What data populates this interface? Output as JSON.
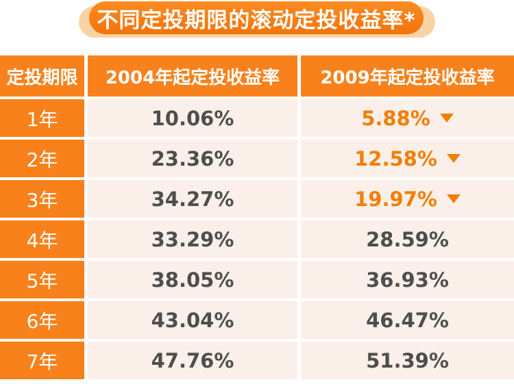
{
  "title": {
    "text": "不同定投期限的滚动定投收益率*"
  },
  "colors": {
    "table_orange": "#F8811B",
    "pill_orange": "#F2740C",
    "pill_halo": "#FAD3A5",
    "cell_bg": "#FBF0E9",
    "value_dark": "#4E4E4E",
    "value_orange": "#F57D00"
  },
  "table": {
    "headers": [
      "定投期限",
      "2004年起定投收益率",
      "2009年起定投收益率"
    ],
    "rows": [
      {
        "period": "1年",
        "v2004": "10.06%",
        "v2009": "5.88%",
        "down": true
      },
      {
        "period": "2年",
        "v2004": "23.36%",
        "v2009": "12.58%",
        "down": true
      },
      {
        "period": "3年",
        "v2004": "34.27%",
        "v2009": "19.97%",
        "down": true
      },
      {
        "period": "4年",
        "v2004": "33.29%",
        "v2009": "28.59%",
        "down": false
      },
      {
        "period": "5年",
        "v2004": "38.05%",
        "v2009": "36.93%",
        "down": false
      },
      {
        "period": "6年",
        "v2004": "43.04%",
        "v2009": "46.47%",
        "down": false
      },
      {
        "period": "7年",
        "v2004": "47.76%",
        "v2009": "51.39%",
        "down": false
      }
    ]
  },
  "chart_data": {
    "type": "table",
    "title": "不同定投期限的滚动定投收益率*",
    "columns": [
      "定投期限",
      "2004年起定投收益率",
      "2009年起定投收益率"
    ],
    "rows": [
      [
        "1年",
        "10.06%",
        "5.88%"
      ],
      [
        "2年",
        "23.36%",
        "12.58%"
      ],
      [
        "3年",
        "34.27%",
        "19.97%"
      ],
      [
        "4年",
        "33.29%",
        "28.59%"
      ],
      [
        "5年",
        "38.05%",
        "36.93%"
      ],
      [
        "6年",
        "43.04%",
        "46.47%"
      ],
      [
        "7年",
        "47.76%",
        "51.39%"
      ]
    ],
    "annotations": "2009年 column values for 1年/2年/3年 shown in orange with a down-pointing triangle marker"
  }
}
